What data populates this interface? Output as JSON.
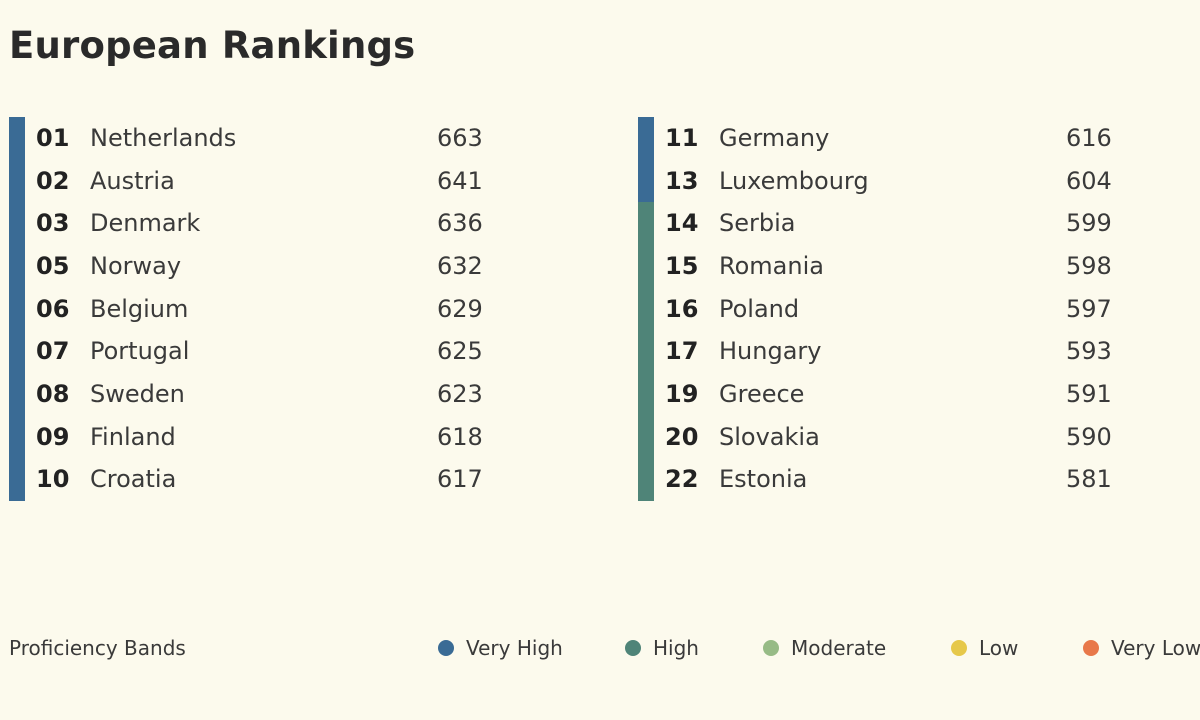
{
  "chart_data": {
    "type": "table",
    "title": "European Rankings",
    "columns": [
      {
        "rows": [
          {
            "rank": "01",
            "country": "Netherlands",
            "score": 663,
            "band": "Very High"
          },
          {
            "rank": "02",
            "country": "Austria",
            "score": 641,
            "band": "Very High"
          },
          {
            "rank": "03",
            "country": "Denmark",
            "score": 636,
            "band": "Very High"
          },
          {
            "rank": "05",
            "country": "Norway",
            "score": 632,
            "band": "Very High"
          },
          {
            "rank": "06",
            "country": "Belgium",
            "score": 629,
            "band": "Very High"
          },
          {
            "rank": "07",
            "country": "Portugal",
            "score": 625,
            "band": "Very High"
          },
          {
            "rank": "08",
            "country": "Sweden",
            "score": 623,
            "band": "Very High"
          },
          {
            "rank": "09",
            "country": "Finland",
            "score": 618,
            "band": "Very High"
          },
          {
            "rank": "10",
            "country": "Croatia",
            "score": 617,
            "band": "Very High"
          }
        ]
      },
      {
        "rows": [
          {
            "rank": "11",
            "country": "Germany",
            "score": 616,
            "band": "Very High"
          },
          {
            "rank": "13",
            "country": "Luxembourg",
            "score": 604,
            "band": "Very High"
          },
          {
            "rank": "14",
            "country": "Serbia",
            "score": 599,
            "band": "High"
          },
          {
            "rank": "15",
            "country": "Romania",
            "score": 598,
            "band": "High"
          },
          {
            "rank": "16",
            "country": "Poland",
            "score": 597,
            "band": "High"
          },
          {
            "rank": "17",
            "country": "Hungary",
            "score": 593,
            "band": "High"
          },
          {
            "rank": "19",
            "country": "Greece",
            "score": 591,
            "band": "High"
          },
          {
            "rank": "20",
            "country": "Slovakia",
            "score": 590,
            "band": "High"
          },
          {
            "rank": "22",
            "country": "Estonia",
            "score": 581,
            "band": "High"
          }
        ]
      }
    ],
    "legend": {
      "title": "Proficiency Bands",
      "placement": "bottom",
      "items": [
        {
          "label": "Very High",
          "color": "#3a6b95"
        },
        {
          "label": "High",
          "color": "#4f8478"
        },
        {
          "label": "Moderate",
          "color": "#97bb86"
        },
        {
          "label": "Low",
          "color": "#e6c84a"
        },
        {
          "label": "Very Low",
          "color": "#e8784a"
        }
      ]
    }
  }
}
